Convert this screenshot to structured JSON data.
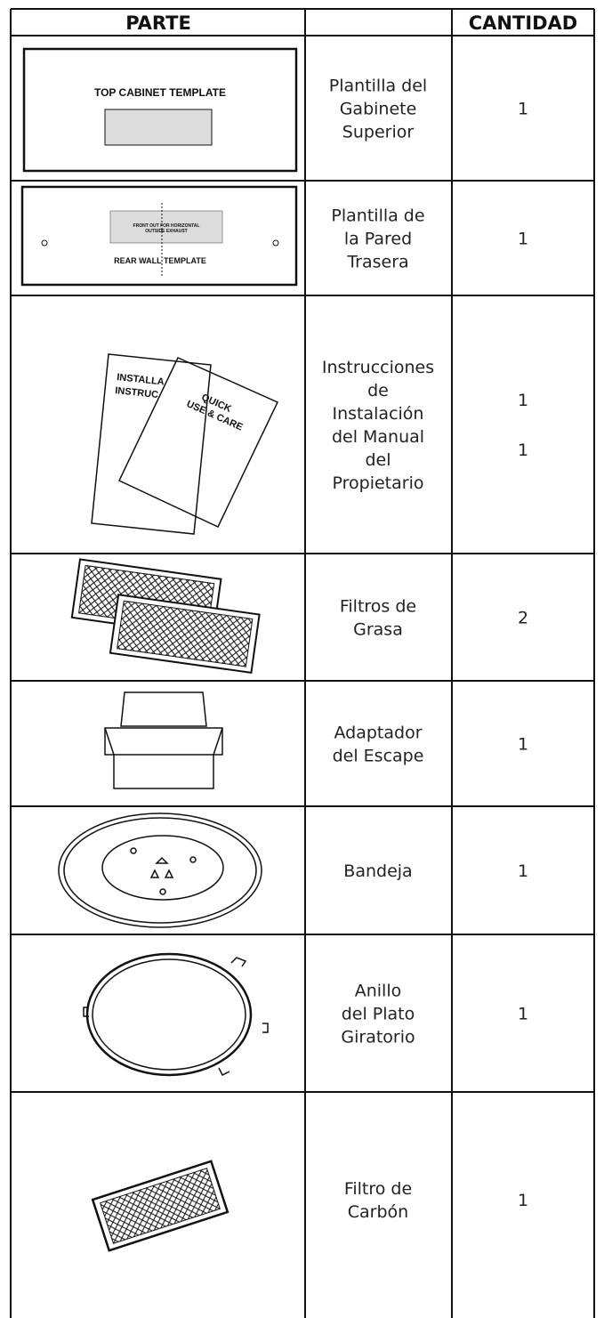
{
  "header": {
    "part": "PARTE",
    "quantity": "CANTIDAD"
  },
  "rows": [
    {
      "name": [
        "Plantilla del",
        "Gabinete",
        "Superior"
      ],
      "quantity": [
        1
      ],
      "labels": [
        "TOP CABINET TEMPLATE"
      ]
    },
    {
      "name": [
        "Plantilla de",
        "la Pared",
        "Trasera"
      ],
      "quantity": [
        1
      ],
      "labels": [
        "REAR WALL TEMPLATE",
        "FRONT OUT FOR HORIZONTAL",
        "OUTSIDE EXHAUST"
      ]
    },
    {
      "name": [
        "Instrucciones",
        "de",
        "Instalación",
        "del Manual",
        "del",
        "Propietario"
      ],
      "quantity": [
        1,
        1
      ],
      "labels": [
        "INSTALLA",
        "INSTRUC",
        "QUICK",
        "USE & CARE"
      ]
    },
    {
      "name": [
        "Filtros de",
        "Grasa"
      ],
      "quantity": [
        2
      ]
    },
    {
      "name": [
        "Adaptador",
        "del Escape"
      ],
      "quantity": [
        1
      ]
    },
    {
      "name": [
        "Bandeja"
      ],
      "quantity": [
        1
      ]
    },
    {
      "name": [
        "Anillo",
        "del Plato",
        "Giratorio"
      ],
      "quantity": [
        1
      ]
    },
    {
      "name": [
        "Filtro de",
        "Carbón"
      ],
      "quantity": [
        1
      ]
    }
  ]
}
